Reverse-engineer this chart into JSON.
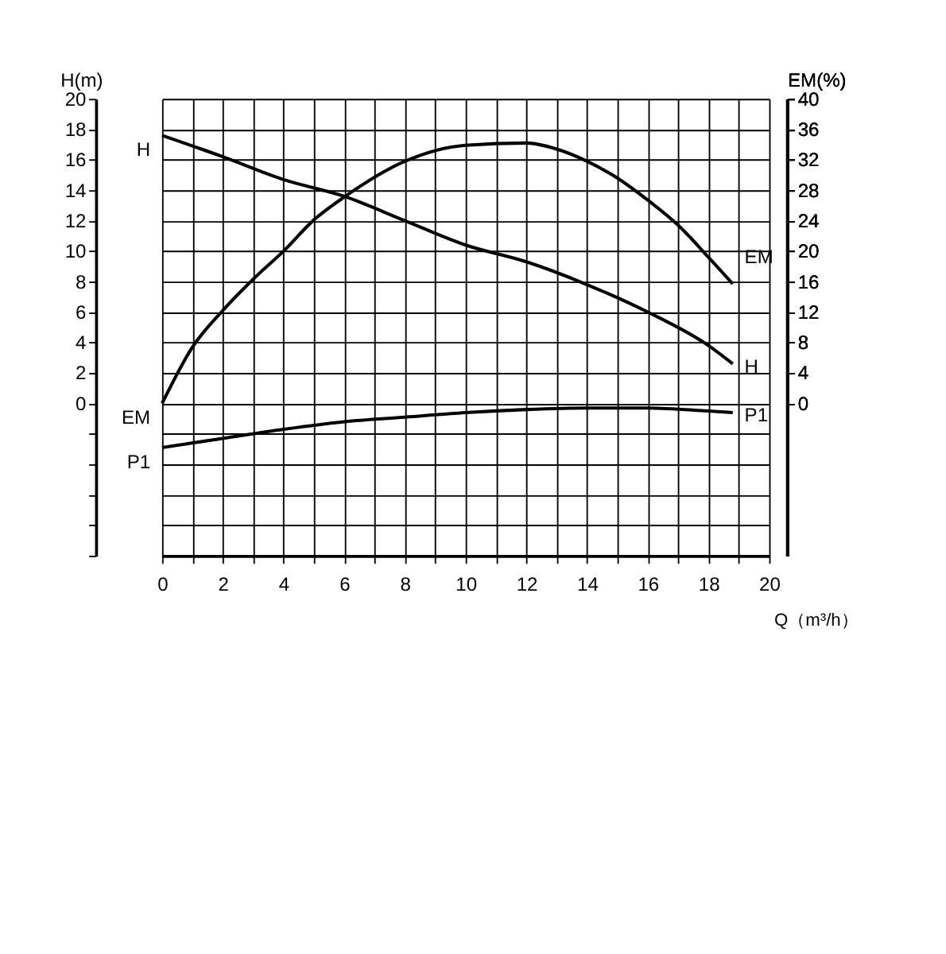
{
  "chart_data": {
    "type": "line",
    "xlabel": "Q（m³/h）",
    "ylabel": "H(m)",
    "y2label": "EM(%)",
    "xlim": [
      0,
      20
    ],
    "xticks": [
      0,
      {
        "value": 1,
        "label": null
      },
      2,
      {
        "value": 3,
        "label": null
      },
      4,
      {
        "value": 5,
        "label": null
      },
      6,
      {
        "value": 7,
        "label": null
      },
      8,
      {
        "value": 9,
        "label": null
      },
      10,
      {
        "value": 11,
        "label": null
      },
      12,
      {
        "value": 13,
        "label": null
      },
      14,
      {
        "value": 15,
        "label": null
      },
      16,
      {
        "value": 17,
        "label": null
      },
      18,
      {
        "value": 19,
        "label": null
      },
      20
    ],
    "ylim": [
      -10,
      20
    ],
    "yticks": [
      {
        "value": -10,
        "label": null
      },
      {
        "value": -8,
        "label": null
      },
      {
        "value": -6,
        "label": null
      },
      {
        "value": -4,
        "label": null
      },
      {
        "value": -2,
        "label": null
      },
      0,
      2,
      4,
      6,
      8,
      10,
      12,
      14,
      16,
      18,
      20
    ],
    "y2lim": [
      -20,
      40
    ],
    "y2ticks": [
      0,
      4,
      8,
      12,
      16,
      20,
      24,
      28,
      32,
      36,
      40
    ],
    "grid": true,
    "legend": false,
    "marker": "none",
    "line_style": "solid",
    "series": [
      {
        "name": "H",
        "color": "#000000",
        "x": [
          0,
          2,
          4,
          6,
          8,
          10,
          12,
          14,
          16,
          18,
          18.8
        ],
        "values": [
          17.6,
          16.2,
          14.7,
          13.6,
          12.0,
          10.4,
          9.3,
          7.8,
          6.0,
          3.8,
          2.6
        ]
      },
      {
        "name": "EM",
        "color": "#000000",
        "axis": "y2",
        "x": [
          0,
          1,
          2,
          3,
          4,
          5,
          6,
          8,
          10,
          12,
          13,
          14,
          15,
          16,
          17,
          18,
          18.8
        ],
        "values": [
          0,
          7.4,
          12.2,
          16.3,
          20,
          24.1,
          27.1,
          31.8,
          33.9,
          34.2,
          33.4,
          31.8,
          29.6,
          26.7,
          23.4,
          19.2,
          15.7
        ]
      },
      {
        "name": "P1",
        "color": "#000000",
        "x": [
          0,
          2,
          4,
          6,
          8,
          10,
          12,
          14,
          16,
          18,
          18.8
        ],
        "values": [
          -2.9,
          -2.3,
          -1.7,
          -1.2,
          -0.9,
          -0.6,
          -0.4,
          -0.3,
          -0.3,
          -0.5,
          -0.6
        ]
      }
    ]
  }
}
